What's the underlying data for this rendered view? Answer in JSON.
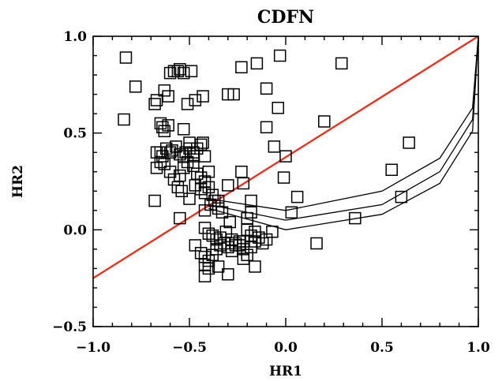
{
  "chart_data": {
    "type": "scatter",
    "title": "CDFN",
    "xlabel": "HR1",
    "ylabel": "HR2",
    "xlim": [
      -1.0,
      1.0
    ],
    "ylim": [
      -0.5,
      1.0
    ],
    "xticks": [
      "−1.0",
      "−0.5",
      "0.0",
      "0.5",
      "1.0"
    ],
    "yticks": [
      "−0.5",
      "0.0",
      "0.5",
      "1.0"
    ],
    "colors": {
      "points": "#000000",
      "reference_line": "#e8321e",
      "model_tracks": "#000000"
    },
    "reference_line": {
      "x": [
        -1.0,
        1.0
      ],
      "y": [
        -0.25,
        1.0
      ]
    },
    "model_tracks": [
      {
        "x": [
          -0.4,
          0.0,
          0.5,
          0.8,
          0.97,
          1.0
        ],
        "y": [
          0.11,
          0.0,
          0.08,
          0.24,
          0.51,
          1.0
        ]
      },
      {
        "x": [
          -0.4,
          0.0,
          0.5,
          0.8,
          0.97,
          1.0
        ],
        "y": [
          0.13,
          0.05,
          0.13,
          0.3,
          0.57,
          1.0
        ]
      },
      {
        "x": [
          -0.4,
          0.0,
          0.5,
          0.8,
          0.97,
          1.0
        ],
        "y": [
          0.16,
          0.1,
          0.2,
          0.37,
          0.63,
          1.0
        ]
      }
    ],
    "points": [
      [
        -0.83,
        0.89
      ],
      [
        -0.78,
        0.74
      ],
      [
        -0.68,
        0.65
      ],
      [
        -0.67,
        0.67
      ],
      [
        -0.63,
        0.72
      ],
      [
        -0.61,
        0.69
      ],
      [
        -0.6,
        0.81
      ],
      [
        -0.58,
        0.82
      ],
      [
        -0.56,
        0.82
      ],
      [
        -0.55,
        0.83
      ],
      [
        -0.53,
        0.81
      ],
      [
        -0.51,
        0.65
      ],
      [
        -0.49,
        0.82
      ],
      [
        -0.47,
        0.67
      ],
      [
        -0.43,
        0.69
      ],
      [
        -0.84,
        0.57
      ],
      [
        -0.65,
        0.55
      ],
      [
        -0.64,
        0.53
      ],
      [
        -0.63,
        0.51
      ],
      [
        -0.61,
        0.54
      ],
      [
        -0.53,
        0.52
      ],
      [
        -0.5,
        0.45
      ],
      [
        -0.48,
        0.4
      ],
      [
        -0.23,
        0.84
      ],
      [
        -0.15,
        0.86
      ],
      [
        -0.03,
        0.9
      ],
      [
        0.29,
        0.86
      ],
      [
        -0.1,
        0.73
      ],
      [
        -0.3,
        0.7
      ],
      [
        -0.27,
        0.7
      ],
      [
        -0.04,
        0.63
      ],
      [
        -0.1,
        0.53
      ],
      [
        -0.06,
        0.43
      ],
      [
        0.2,
        0.56
      ],
      [
        -0.67,
        0.4
      ],
      [
        -0.65,
        0.4
      ],
      [
        -0.64,
        0.38
      ],
      [
        -0.62,
        0.42
      ],
      [
        -0.6,
        0.4
      ],
      [
        -0.59,
        0.41
      ],
      [
        -0.57,
        0.43
      ],
      [
        -0.55,
        0.39
      ],
      [
        -0.53,
        0.38
      ],
      [
        -0.52,
        0.4
      ],
      [
        -0.5,
        0.42
      ],
      [
        -0.48,
        0.38
      ],
      [
        -0.46,
        0.42
      ],
      [
        -0.44,
        0.44
      ],
      [
        -0.43,
        0.45
      ],
      [
        -0.42,
        0.38
      ],
      [
        -0.67,
        0.32
      ],
      [
        -0.65,
        0.35
      ],
      [
        -0.63,
        0.34
      ],
      [
        -0.6,
        0.3
      ],
      [
        -0.58,
        0.26
      ],
      [
        -0.55,
        0.28
      ],
      [
        -0.53,
        0.32
      ],
      [
        -0.51,
        0.35
      ],
      [
        -0.48,
        0.33
      ],
      [
        -0.46,
        0.29
      ],
      [
        -0.44,
        0.27
      ],
      [
        -0.42,
        0.25
      ],
      [
        -0.4,
        0.3
      ],
      [
        -0.56,
        0.22
      ],
      [
        -0.54,
        0.2
      ],
      [
        -0.5,
        0.16
      ],
      [
        -0.47,
        0.23
      ],
      [
        -0.44,
        0.21
      ],
      [
        -0.42,
        0.19
      ],
      [
        -0.4,
        0.22
      ],
      [
        -0.38,
        0.18
      ],
      [
        -0.35,
        0.15
      ],
      [
        -0.3,
        0.23
      ],
      [
        -0.23,
        0.3
      ],
      [
        -0.22,
        0.24
      ],
      [
        -0.68,
        0.15
      ],
      [
        -0.55,
        0.06
      ],
      [
        -0.42,
        0.1
      ],
      [
        -0.39,
        0.13
      ],
      [
        -0.37,
        0.15
      ],
      [
        -0.35,
        0.11
      ],
      [
        -0.33,
        0.09
      ],
      [
        -0.18,
        0.15
      ],
      [
        -0.18,
        0.09
      ],
      [
        -0.2,
        0.06
      ],
      [
        0.0,
        0.38
      ],
      [
        -0.01,
        0.27
      ],
      [
        0.06,
        0.17
      ],
      [
        0.03,
        0.09
      ],
      [
        -0.42,
        0.01
      ],
      [
        -0.4,
        -0.02
      ],
      [
        -0.38,
        -0.03
      ],
      [
        -0.36,
        -0.05
      ],
      [
        -0.34,
        -0.04
      ],
      [
        -0.31,
        -0.01
      ],
      [
        -0.29,
        0.04
      ],
      [
        -0.28,
        -0.05
      ],
      [
        -0.26,
        -0.07
      ],
      [
        -0.24,
        -0.08
      ],
      [
        -0.22,
        -0.06
      ],
      [
        -0.2,
        0.0
      ],
      [
        -0.18,
        -0.03
      ],
      [
        -0.16,
        -0.01
      ],
      [
        -0.14,
        -0.04
      ],
      [
        -0.12,
        -0.07
      ],
      [
        -0.1,
        -0.05
      ],
      [
        -0.07,
        -0.01
      ],
      [
        -0.47,
        -0.08
      ],
      [
        -0.44,
        -0.12
      ],
      [
        -0.42,
        -0.14
      ],
      [
        -0.4,
        -0.16
      ],
      [
        -0.38,
        -0.13
      ],
      [
        -0.36,
        -0.1
      ],
      [
        -0.34,
        -0.08
      ],
      [
        -0.32,
        -0.07
      ],
      [
        -0.3,
        -0.09
      ],
      [
        -0.28,
        -0.11
      ],
      [
        -0.26,
        -0.08
      ],
      [
        -0.24,
        -0.06
      ],
      [
        -0.22,
        -0.1
      ],
      [
        -0.2,
        -0.13
      ],
      [
        -0.18,
        -0.09
      ],
      [
        -0.16,
        -0.06
      ],
      [
        -0.42,
        -0.18
      ],
      [
        -0.4,
        -0.2
      ],
      [
        -0.42,
        -0.24
      ],
      [
        -0.35,
        -0.19
      ],
      [
        -0.3,
        -0.23
      ],
      [
        -0.22,
        -0.15
      ],
      [
        -0.16,
        -0.19
      ],
      [
        0.16,
        -0.07
      ],
      [
        0.36,
        0.06
      ],
      [
        0.55,
        0.31
      ],
      [
        0.6,
        0.17
      ],
      [
        0.64,
        0.45
      ]
    ]
  }
}
